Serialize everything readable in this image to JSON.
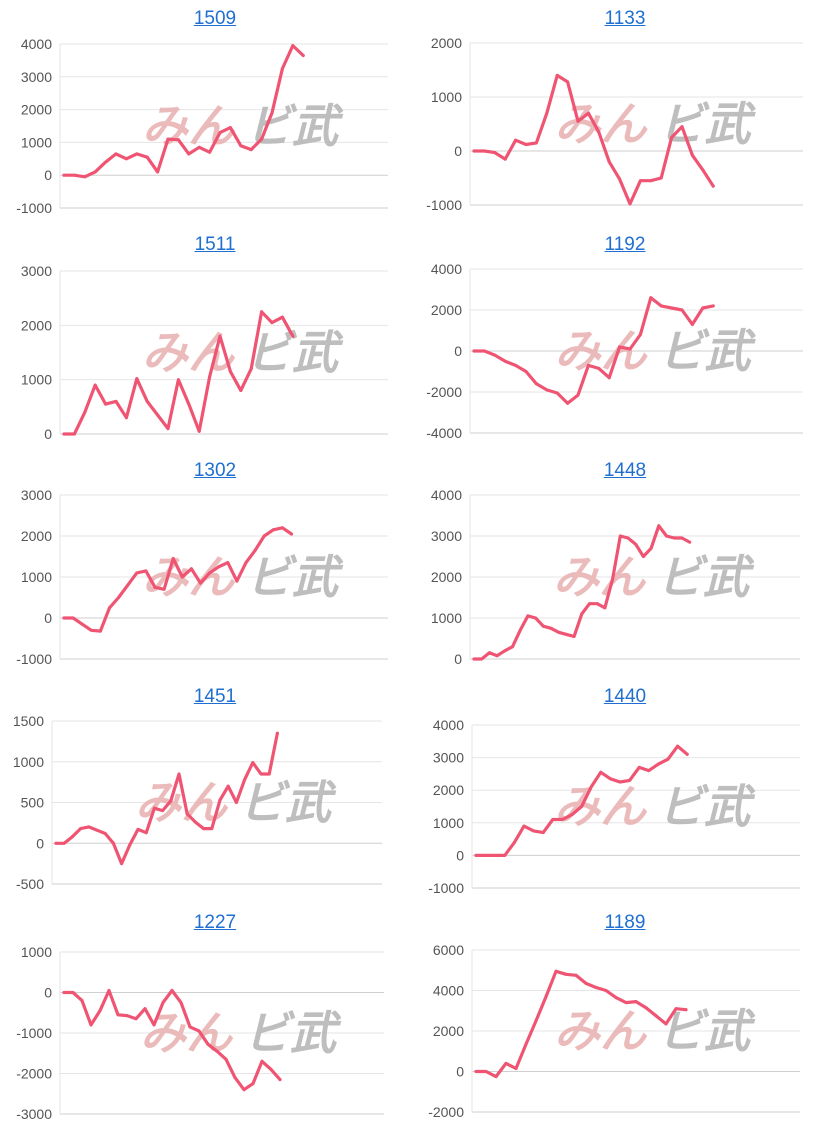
{
  "watermark": {
    "left": "みん",
    "right": "ビ武"
  },
  "colors": {
    "line": "#ef5573",
    "grid": "#e6e6e6",
    "axis": "#cfcfcf",
    "tick": "#555555",
    "title": "#1f6fd1"
  },
  "chart_data": [
    {
      "type": "line",
      "title": "1509",
      "ylim": [
        -1000,
        4000
      ],
      "yticks": [
        4000,
        3000,
        2000,
        1000,
        0,
        -1000
      ],
      "values": [
        0,
        0,
        -50,
        100,
        400,
        650,
        500,
        650,
        550,
        100,
        1100,
        1080,
        650,
        850,
        700,
        1300,
        1450,
        900,
        780,
        1100,
        1900,
        3250,
        3950,
        3650
      ]
    },
    {
      "type": "line",
      "title": "1133",
      "ylim": [
        -1000,
        2000
      ],
      "yticks": [
        2000,
        1000,
        0,
        -1000
      ],
      "values": [
        0,
        0,
        -30,
        -150,
        200,
        120,
        150,
        700,
        1400,
        1280,
        550,
        700,
        350,
        -200,
        -520,
        -980,
        -550,
        -550,
        -500,
        250,
        450,
        -80,
        -350,
        -650
      ]
    },
    {
      "type": "line",
      "title": "1511",
      "ylim": [
        0,
        3000
      ],
      "yticks": [
        3000,
        2000,
        1000,
        0
      ],
      "values": [
        0,
        0,
        400,
        900,
        550,
        600,
        300,
        1020,
        600,
        350,
        100,
        1000,
        550,
        50,
        1050,
        1800,
        1150,
        800,
        1200,
        2250,
        2050,
        2150,
        1800
      ]
    },
    {
      "type": "line",
      "title": "1192",
      "ylim": [
        -4000,
        4000
      ],
      "yticks": [
        4000,
        2000,
        0,
        -2000,
        -4000
      ],
      "values": [
        0,
        0,
        -200,
        -500,
        -700,
        -1000,
        -1600,
        -1900,
        -2050,
        -2550,
        -2150,
        -700,
        -850,
        -1300,
        200,
        100,
        800,
        2600,
        2200,
        2100,
        2000,
        1300,
        2100,
        2200
      ]
    },
    {
      "type": "line",
      "title": "1302",
      "ylim": [
        -1000,
        3000
      ],
      "yticks": [
        3000,
        2000,
        1000,
        0,
        -1000
      ],
      "values": [
        0,
        0,
        -150,
        -300,
        -320,
        250,
        500,
        800,
        1100,
        1150,
        750,
        700,
        1450,
        1000,
        1200,
        850,
        1100,
        1250,
        1350,
        900,
        1350,
        1650,
        2000,
        2150,
        2200,
        2050
      ]
    },
    {
      "type": "line",
      "title": "1448",
      "ylim": [
        0,
        4000
      ],
      "yticks": [
        4000,
        3000,
        2000,
        1000,
        0
      ],
      "values": [
        0,
        0,
        150,
        80,
        200,
        300,
        700,
        1050,
        1000,
        800,
        750,
        650,
        600,
        550,
        1100,
        1350,
        1350,
        1250,
        1950,
        3000,
        2950,
        2800,
        2500,
        2700,
        3250,
        3000,
        2950,
        2950,
        2850
      ]
    },
    {
      "type": "line",
      "title": "1451",
      "ylim": [
        -500,
        1500
      ],
      "yticks": [
        1500,
        1000,
        500,
        0,
        -500
      ],
      "values": [
        0,
        0,
        80,
        180,
        200,
        160,
        120,
        0,
        -250,
        -20,
        170,
        130,
        430,
        400,
        520,
        850,
        360,
        260,
        180,
        180,
        530,
        700,
        500,
        780,
        990,
        850,
        850,
        1350
      ]
    },
    {
      "type": "line",
      "title": "1440",
      "ylim": [
        -1000,
        4000
      ],
      "yticks": [
        4000,
        3000,
        2000,
        1000,
        0,
        -1000
      ],
      "values": [
        0,
        0,
        0,
        0,
        400,
        900,
        750,
        700,
        1100,
        1100,
        1250,
        1500,
        2100,
        2550,
        2350,
        2250,
        2300,
        2700,
        2600,
        2800,
        2950,
        3350,
        3100
      ]
    },
    {
      "type": "line",
      "title": "1227",
      "ylim": [
        -3000,
        1000
      ],
      "yticks": [
        1000,
        0,
        -1000,
        -2000,
        -3000
      ],
      "values": [
        0,
        0,
        -200,
        -800,
        -450,
        50,
        -550,
        -570,
        -650,
        -400,
        -800,
        -250,
        50,
        -250,
        -850,
        -950,
        -1280,
        -1450,
        -1650,
        -2100,
        -2400,
        -2250,
        -1700,
        -1900,
        -2150
      ]
    },
    {
      "type": "line",
      "title": "1189",
      "ylim": [
        -2000,
        6000
      ],
      "yticks": [
        6000,
        4000,
        2000,
        0,
        -2000
      ],
      "values": [
        0,
        0,
        -250,
        400,
        150,
        1350,
        2500,
        3700,
        4950,
        4800,
        4750,
        4350,
        4150,
        4000,
        3650,
        3400,
        3450,
        3150,
        2750,
        2350,
        3100,
        3050
      ]
    }
  ]
}
